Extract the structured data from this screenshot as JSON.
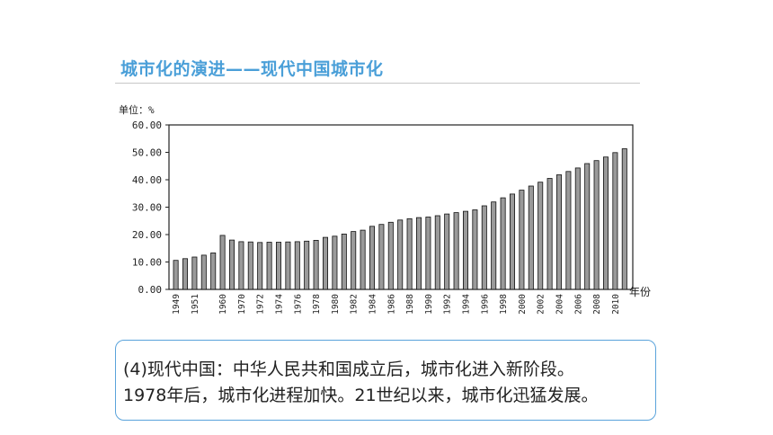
{
  "slide": {
    "title": "城市化的演进——现代中国城市化",
    "caption_line1": "(4)现代中国：中华人民共和国成立后，城市化进入新阶段。",
    "caption_line2": "1978年后，城市化进程加快。21世纪以来，城市化迅猛发展。"
  },
  "chart_data": {
    "type": "bar",
    "unit_label": "单位：%",
    "xlabel": "年份",
    "ylim": [
      0,
      60
    ],
    "yticks": [
      "0.00",
      "10.00",
      "20.00",
      "30.00",
      "40.00",
      "50.00",
      "60.00"
    ],
    "grid": false,
    "bar_color": "#9a9a9a",
    "categories": [
      "1949",
      "1950",
      "1951",
      "1952",
      "1953",
      "1960",
      "1965",
      "1970",
      "1971",
      "1972",
      "1973",
      "1974",
      "1975",
      "1976",
      "1977",
      "1978",
      "1979",
      "1980",
      "1981",
      "1982",
      "1983",
      "1984",
      "1985",
      "1986",
      "1987",
      "1988",
      "1989",
      "1990",
      "1991",
      "1992",
      "1993",
      "1994",
      "1995",
      "1996",
      "1997",
      "1998",
      "1999",
      "2000",
      "2001",
      "2002",
      "2003",
      "2004",
      "2005",
      "2006",
      "2007",
      "2008",
      "2009",
      "2010",
      "2011"
    ],
    "tick_labels": [
      "1949",
      "",
      "1951",
      "",
      "",
      "1960",
      "",
      "1970",
      "",
      "1972",
      "",
      "1974",
      "",
      "1976",
      "",
      "1978",
      "",
      "1980",
      "",
      "1982",
      "",
      "1984",
      "",
      "1986",
      "",
      "1988",
      "",
      "1990",
      "",
      "1992",
      "",
      "1994",
      "",
      "1996",
      "",
      "1998",
      "",
      "2000",
      "",
      "2002",
      "",
      "2004",
      "",
      "2006",
      "",
      "2008",
      "",
      "2010",
      ""
    ],
    "values": [
      10.6,
      11.2,
      11.8,
      12.5,
      13.3,
      19.7,
      18.0,
      17.4,
      17.3,
      17.1,
      17.2,
      17.2,
      17.3,
      17.4,
      17.6,
      17.9,
      19.0,
      19.4,
      20.2,
      21.1,
      21.6,
      23.0,
      23.7,
      24.5,
      25.3,
      25.8,
      26.2,
      26.4,
      26.9,
      27.5,
      28.0,
      28.5,
      29.0,
      30.5,
      31.9,
      33.4,
      34.8,
      36.2,
      37.7,
      39.1,
      40.5,
      41.8,
      43.0,
      44.3,
      45.9,
      47.0,
      48.3,
      49.9,
      51.3
    ]
  }
}
